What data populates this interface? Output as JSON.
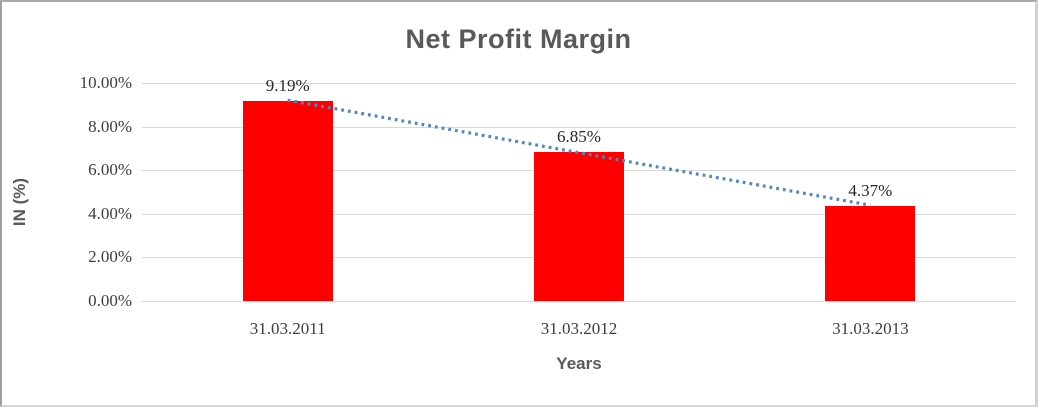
{
  "chart_data": {
    "type": "bar",
    "title": "Net Profit Margin",
    "categories": [
      "31.03.2011",
      "31.03.2012",
      "31.03.2013"
    ],
    "values": [
      9.19,
      6.85,
      4.37
    ],
    "data_labels": [
      "9.19%",
      "6.85%",
      "4.37%"
    ],
    "xlabel": "Years",
    "ylabel": "IN (%)",
    "ylim": [
      0,
      10
    ],
    "ytick_labels": [
      "0.00%",
      "2.00%",
      "4.00%",
      "6.00%",
      "8.00%",
      "10.00%"
    ],
    "grid": true,
    "legend": "none",
    "bar_color": "#FF0000",
    "gridline_color": "#d9d9d9",
    "title_color": "#595959",
    "trendline": {
      "type": "linear",
      "style": "dotted",
      "color": "#4E87C7",
      "endpoint_values": [
        9.213,
        4.393
      ]
    }
  }
}
